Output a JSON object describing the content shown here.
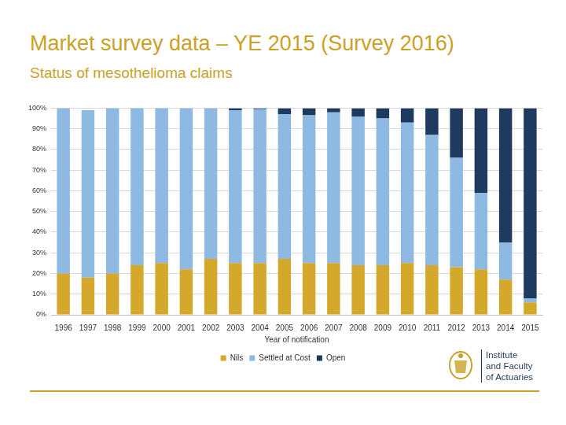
{
  "chart_data": {
    "type": "bar",
    "title": "Market survey data – YE 2015 (Survey 2016)",
    "subtitle": "Status of mesothelioma claims",
    "x_label": "Year of notification",
    "annotations": [
      "Institute",
      "and Faculty",
      "of Actuaries"
    ],
    "categories": [
      "1996",
      "1997",
      "1998",
      "1999",
      "2000",
      "2001",
      "2002",
      "2003",
      "2004",
      "2005",
      "2006",
      "2007",
      "2008",
      "2009",
      "2010",
      "2011",
      "2012",
      "2013",
      "2014",
      "2015"
    ],
    "series": [
      {
        "name": "Nils",
        "color": "#d4a82a",
        "values": [
          20,
          18,
          20,
          24,
          25,
          22,
          27,
          25,
          25,
          27,
          25,
          25,
          24,
          24,
          25,
          24,
          23,
          22,
          17,
          6
        ]
      },
      {
        "name": "Settled at Cost",
        "color": "#8db9e2",
        "values": [
          80,
          81,
          80,
          76,
          75,
          78,
          73,
          74,
          74.5,
          70,
          71.5,
          73,
          72,
          71,
          68,
          63,
          53,
          37,
          18,
          2
        ]
      },
      {
        "name": "Open",
        "color": "#1f3a5f",
        "values": [
          0,
          0,
          0,
          0,
          0,
          0,
          0,
          1,
          0.5,
          3,
          3.5,
          2,
          4,
          5,
          7,
          13,
          24,
          41,
          65,
          92
        ]
      }
    ],
    "ylim": [
      0,
      100
    ],
    "yticks": [
      {
        "value": 0,
        "label": "0%"
      },
      {
        "value": 10,
        "label": "10%"
      },
      {
        "value": 20,
        "label": "20%"
      },
      {
        "value": 30,
        "label": "30%"
      },
      {
        "value": 40,
        "label": "40%"
      },
      {
        "value": 50,
        "label": "50%"
      },
      {
        "value": 60,
        "label": "60%"
      },
      {
        "value": 70,
        "label": "70%"
      },
      {
        "value": 80,
        "label": "80%"
      },
      {
        "value": 90,
        "label": "90%"
      },
      {
        "value": 100,
        "label": "100%"
      }
    ],
    "stacked": true,
    "grid": true,
    "legend": "bottom"
  }
}
